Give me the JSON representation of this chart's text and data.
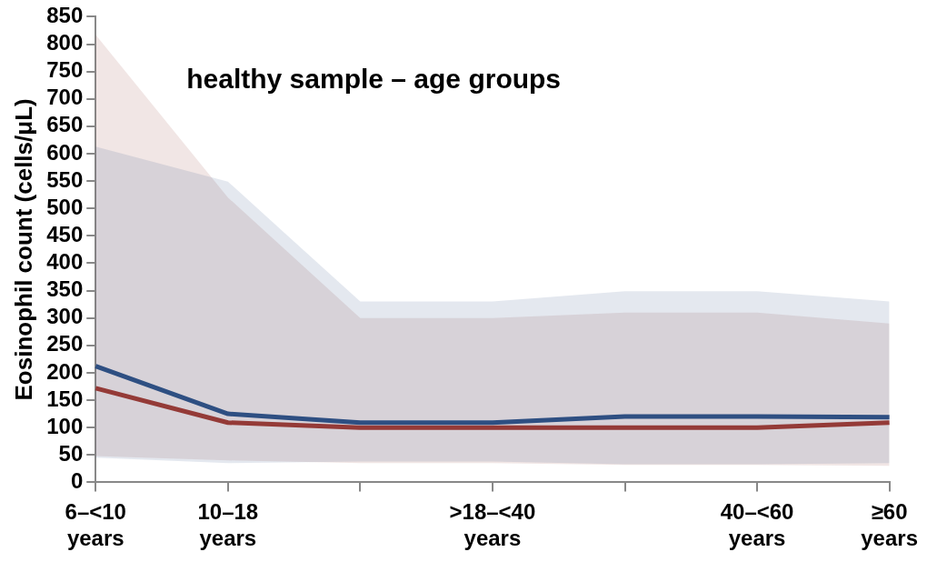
{
  "chart_data": {
    "type": "line",
    "ylabel": "Eosinophil count (cells/μL)",
    "annotations": [
      "healthy sample – age groups"
    ],
    "categories": [
      "6–<10 years",
      "10–18 years",
      null,
      ">18–<40 years",
      null,
      "40–<60 years",
      "≥60 years"
    ],
    "ylim": [
      0,
      850
    ],
    "yticks": [
      0,
      50,
      100,
      150,
      200,
      250,
      300,
      350,
      400,
      450,
      500,
      550,
      600,
      650,
      700,
      750,
      800,
      850
    ],
    "grid": false,
    "legend": false,
    "marker": "none",
    "line_style": "solid",
    "series": [
      {
        "color": "#2e4f82",
        "values": [
          212,
          125,
          109,
          109,
          120,
          120,
          119
        ],
        "lower": [
          45,
          35,
          38,
          38,
          33,
          33,
          35
        ],
        "upper": [
          613,
          549,
          330,
          330,
          349,
          349,
          330
        ]
      },
      {
        "color": "#943a37",
        "values": [
          172,
          109,
          100,
          100,
          100,
          100,
          109
        ],
        "lower": [
          48,
          40,
          35,
          35,
          32,
          32,
          30
        ],
        "upper": [
          817,
          520,
          300,
          300,
          310,
          310,
          290
        ]
      }
    ]
  }
}
